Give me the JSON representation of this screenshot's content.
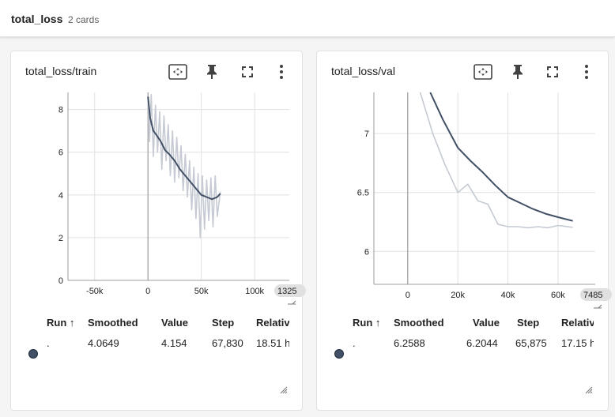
{
  "group": {
    "title": "total_loss",
    "count": "2 cards"
  },
  "colors": {
    "smoothed": "#425066",
    "raw": "#c5cad3",
    "grid": "#e0e0e0",
    "axis": "#9e9e9e"
  },
  "icons": [
    "fit-domain-icon",
    "pin-icon",
    "fullscreen-icon",
    "more-vert-icon",
    "resize-icon"
  ],
  "table_headers": {
    "run": "Run ↑",
    "smoothed": "Smoothed",
    "value": "Value",
    "step": "Step",
    "relative": "Relative"
  },
  "cards": [
    {
      "title": "total_loss/train",
      "x_ticks": [
        "-50k",
        "0",
        "50k",
        "100k"
      ],
      "x_edge": "1325",
      "y_ticks": [
        "0",
        "2",
        "4",
        "6",
        "8"
      ],
      "row": {
        "run": ".",
        "smoothed": "4.0649",
        "value": "4.154",
        "step": "67,830",
        "relative": "18.51 h"
      }
    },
    {
      "title": "total_loss/val",
      "x_ticks": [
        "0",
        "20k",
        "40k",
        "60k"
      ],
      "x_edge": "7485",
      "y_ticks": [
        "6",
        "6.5",
        "7"
      ],
      "row": {
        "run": ".",
        "smoothed": "6.2588",
        "value": "6.2044",
        "step": "65,875",
        "relative": "17.15 h"
      }
    }
  ],
  "chart_data": [
    {
      "type": "line",
      "title": "total_loss/train",
      "xlim": [
        -75000,
        132500
      ],
      "ylim": [
        0,
        8.8
      ],
      "series": [
        {
          "x": [
            0,
            2000,
            5000,
            8000,
            12000,
            16000,
            20000,
            25000,
            30000,
            35000,
            40000,
            45000,
            50000,
            55000,
            60000,
            65000,
            67830
          ],
          "values": [
            8.6,
            7.6,
            7.0,
            6.8,
            6.5,
            6.1,
            5.9,
            5.6,
            5.2,
            4.9,
            4.6,
            4.3,
            4.0,
            3.9,
            3.8,
            3.9,
            4.0649
          ]
        },
        {
          "x": [
            0,
            1500,
            3000,
            5000,
            7000,
            9000,
            11000,
            13000,
            15000,
            17000,
            19000,
            21000,
            23000,
            25000,
            27000,
            29000,
            31000,
            33000,
            35000,
            37000,
            39000,
            41000,
            43000,
            45000,
            47000,
            49000,
            51000,
            53000,
            55000,
            57000,
            59000,
            61000,
            63000,
            65000,
            67830
          ],
          "values": [
            8.5,
            6.5,
            8.7,
            5.8,
            8.2,
            6.0,
            7.9,
            5.2,
            7.7,
            5.6,
            7.3,
            4.9,
            7.0,
            4.6,
            6.7,
            4.8,
            6.3,
            4.2,
            5.9,
            3.9,
            5.6,
            3.3,
            5.3,
            2.9,
            5.0,
            2.0,
            4.9,
            2.4,
            4.7,
            2.8,
            4.8,
            2.5,
            4.9,
            3.0,
            4.154
          ]
        }
      ]
    },
    {
      "type": "line",
      "title": "total_loss/val",
      "xlim": [
        -13500,
        74850
      ],
      "ylim": [
        5.72,
        7.35
      ],
      "series": [
        {
          "x": [
            9000,
            14000,
            20000,
            25000,
            30000,
            35000,
            40000,
            45000,
            50000,
            55000,
            60000,
            65875
          ],
          "values": [
            7.35,
            7.12,
            6.88,
            6.77,
            6.67,
            6.56,
            6.46,
            6.41,
            6.36,
            6.32,
            6.29,
            6.2588
          ]
        },
        {
          "x": [
            5000,
            10000,
            15000,
            20000,
            24000,
            28000,
            32000,
            36000,
            40000,
            44000,
            48000,
            52000,
            56000,
            60000,
            65875
          ],
          "values": [
            7.35,
            7.0,
            6.73,
            6.5,
            6.57,
            6.43,
            6.4,
            6.23,
            6.21,
            6.21,
            6.2,
            6.21,
            6.2,
            6.22,
            6.2044
          ]
        }
      ]
    }
  ]
}
